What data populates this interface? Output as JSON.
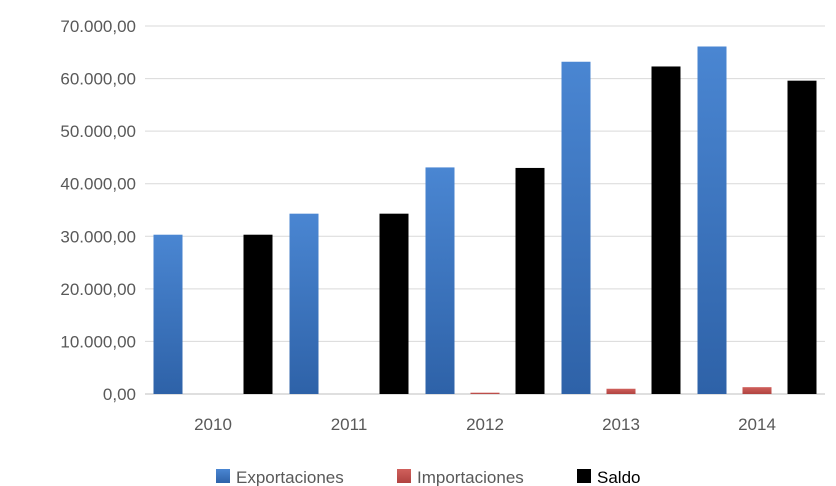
{
  "chart_data": {
    "type": "bar",
    "title": "",
    "xlabel": "",
    "ylabel": "",
    "categories": [
      "2010",
      "2011",
      "2012",
      "2013",
      "2014"
    ],
    "series": [
      {
        "name": "Exportaciones",
        "values": [
          30300,
          34300,
          43100,
          63200,
          66100
        ],
        "color": "#3a75c4"
      },
      {
        "name": "Importaciones",
        "values": [
          0,
          0,
          250,
          1000,
          1300
        ],
        "color": "#c0504d"
      },
      {
        "name": "Saldo",
        "values": [
          30300,
          34300,
          43000,
          62300,
          59600
        ],
        "color": "#000000"
      }
    ],
    "ylim": [
      0,
      70000
    ],
    "yticks": [
      0,
      10000,
      20000,
      30000,
      40000,
      50000,
      60000,
      70000
    ],
    "ytick_labels": [
      "0,00",
      "10.000,00",
      "20.000,00",
      "30.000,00",
      "40.000,00",
      "50.000,00",
      "60.000,00",
      "70.000,00"
    ],
    "grid": true,
    "legend_position": "bottom"
  }
}
